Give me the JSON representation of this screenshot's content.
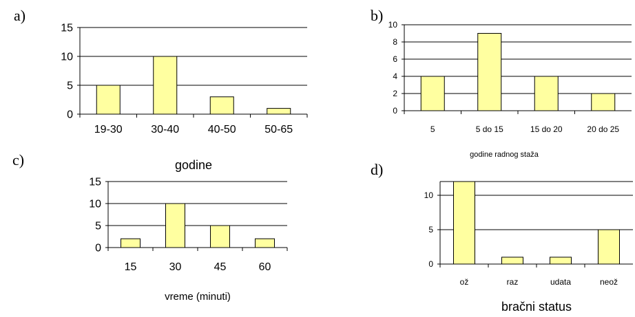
{
  "colors": {
    "bar_fill": "#ffffa0",
    "stroke": "#000000"
  },
  "panels": [
    {
      "letter": "a)"
    },
    {
      "letter": "b)"
    },
    {
      "letter": "c)"
    },
    {
      "letter": "d)"
    }
  ],
  "chart_data": [
    {
      "type": "bar",
      "categories": [
        "19-30",
        "30-40",
        "40-50",
        "50-65"
      ],
      "values": [
        5,
        10,
        3,
        1
      ],
      "xlabel": "godine",
      "ylabel": "",
      "ylim": [
        0,
        15
      ],
      "yticks": [
        0,
        5,
        10,
        15
      ],
      "grid": true
    },
    {
      "type": "bar",
      "categories": [
        "5",
        "5 do 15",
        "15 do 20",
        "20 do 25"
      ],
      "values": [
        4,
        9,
        4,
        2
      ],
      "xlabel": "godine radnog staža",
      "ylabel": "",
      "ylim": [
        0,
        10
      ],
      "yticks": [
        0,
        2,
        4,
        6,
        8,
        10
      ],
      "grid": true
    },
    {
      "type": "bar",
      "categories": [
        "15",
        "30",
        "45",
        "60"
      ],
      "values": [
        2,
        10,
        5,
        2
      ],
      "xlabel": "vreme (minuti)",
      "ylabel": "",
      "ylim": [
        0,
        15
      ],
      "yticks": [
        0,
        5,
        10,
        15
      ],
      "grid": true
    },
    {
      "type": "bar",
      "categories": [
        "ož",
        "raz",
        "udata",
        "neož"
      ],
      "values": [
        12,
        1,
        1,
        5
      ],
      "xlabel": "bračni status",
      "ylabel": "",
      "ylim": [
        0,
        12
      ],
      "yticks": [
        0,
        5,
        10
      ],
      "grid": true
    }
  ]
}
